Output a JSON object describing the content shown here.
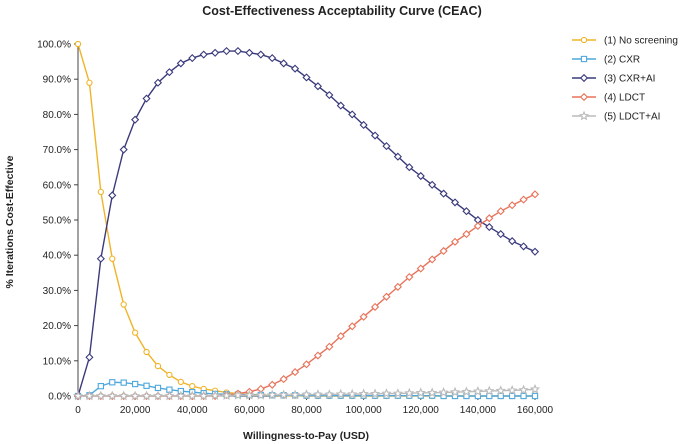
{
  "chart_data": {
    "type": "line",
    "title": "Cost-Effectiveness Acceptability Curve (CEAC)",
    "xlabel": "Willingness-to-Pay (USD)",
    "ylabel": "% Iterations Cost-Effective",
    "xlim": [
      0,
      160000
    ],
    "ylim": [
      0,
      100
    ],
    "x_ticks": [
      0,
      20000,
      40000,
      60000,
      80000,
      100000,
      120000,
      140000,
      160000
    ],
    "x_tick_labels": [
      "0",
      "20,000",
      "40,000",
      "60,000",
      "80,000",
      "100,000",
      "120,000",
      "140,000",
      "160,000"
    ],
    "y_ticks": [
      0,
      10,
      20,
      30,
      40,
      50,
      60,
      70,
      80,
      90,
      100
    ],
    "y_tick_labels": [
      "0.0%",
      "10.0%",
      "20.0%",
      "30.0%",
      "40.0%",
      "50.0%",
      "60.0%",
      "70.0%",
      "80.0%",
      "90.0%",
      "100.0%"
    ],
    "grid": false,
    "legend_position": "right",
    "x": [
      0,
      4000,
      8000,
      12000,
      16000,
      20000,
      24000,
      28000,
      32000,
      36000,
      40000,
      44000,
      48000,
      52000,
      56000,
      60000,
      64000,
      68000,
      72000,
      76000,
      80000,
      84000,
      88000,
      92000,
      96000,
      100000,
      104000,
      108000,
      112000,
      116000,
      120000,
      124000,
      128000,
      132000,
      136000,
      140000,
      144000,
      148000,
      152000,
      156000,
      160000
    ],
    "series": [
      {
        "name": "(1) No screening",
        "color": "#F0B429",
        "marker": "circle",
        "values": [
          100,
          89,
          58,
          39,
          26,
          18,
          12.5,
          8.5,
          6,
          4,
          2.8,
          2,
          1.5,
          1,
          0.7,
          0.5,
          0.3,
          0.2,
          0.1,
          0.1,
          0,
          0,
          0,
          0,
          0,
          0,
          0,
          0,
          0,
          0,
          0,
          0,
          0,
          0,
          0,
          0,
          0,
          0,
          0,
          0,
          0
        ]
      },
      {
        "name": "(2) CXR",
        "color": "#4EA8DE",
        "marker": "square",
        "values": [
          0,
          0.2,
          2.8,
          3.9,
          3.8,
          3.4,
          2.9,
          2.3,
          1.8,
          1.4,
          1.1,
          0.8,
          0.6,
          0.5,
          0.4,
          0.3,
          0.3,
          0.2,
          0.2,
          0.2,
          0.1,
          0.1,
          0.1,
          0.1,
          0.1,
          0.1,
          0.1,
          0.1,
          0.1,
          0.1,
          0.1,
          0.1,
          0,
          0,
          0,
          0,
          0,
          0,
          0,
          0,
          0
        ]
      },
      {
        "name": "(3) CXR+AI",
        "color": "#3A3A7C",
        "marker": "diamond",
        "values": [
          0,
          11,
          39,
          57,
          70,
          78.5,
          84.5,
          89,
          92,
          94.5,
          96,
          97,
          97.5,
          98,
          98,
          97.5,
          97,
          96,
          94.5,
          93,
          90.5,
          88,
          85.5,
          82.5,
          80,
          77,
          74,
          71,
          68,
          65,
          62.5,
          60,
          57.5,
          55,
          52.5,
          50,
          48,
          46,
          44,
          42.5,
          41
        ]
      },
      {
        "name": "(4) LDCT",
        "color": "#E8735A",
        "marker": "diamond",
        "values": [
          0,
          0,
          0,
          0,
          0,
          0,
          0,
          0,
          0,
          0,
          0,
          0,
          0,
          0.3,
          0.7,
          1.2,
          2,
          3.2,
          4.8,
          6.8,
          9,
          11.5,
          14,
          17,
          19.8,
          22.5,
          25.3,
          28.2,
          31,
          33.8,
          36.2,
          38.8,
          41.2,
          43.8,
          46,
          48.3,
          50.5,
          52.5,
          54.2,
          55.8,
          57.3
        ]
      },
      {
        "name": "(5) LDCT+AI",
        "color": "#BBBBBB",
        "marker": "star",
        "values": [
          0,
          0,
          0,
          0,
          0,
          0,
          0,
          0,
          0,
          0,
          0,
          0,
          0.1,
          0.1,
          0.2,
          0.2,
          0.2,
          0.3,
          0.3,
          0.3,
          0.4,
          0.4,
          0.4,
          0.5,
          0.5,
          0.6,
          0.6,
          0.7,
          0.7,
          0.8,
          0.9,
          0.9,
          1,
          1.1,
          1.2,
          1.3,
          1.4,
          1.5,
          1.6,
          1.7,
          1.9
        ]
      }
    ]
  }
}
